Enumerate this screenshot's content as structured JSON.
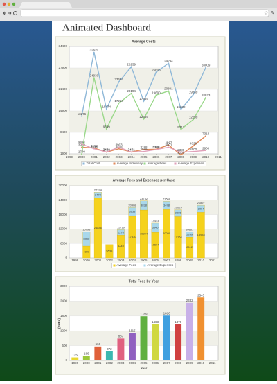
{
  "page_title": "Animated Dashboard",
  "chart_data": [
    {
      "type": "line",
      "title": "Average Costs",
      "x": [
        2000,
        2001,
        2002,
        2003,
        2004,
        2005,
        2006,
        2007,
        2008,
        2009,
        2010
      ],
      "xlim": [
        1999,
        2011
      ],
      "xticks": [
        1999,
        2000,
        2001,
        2002,
        2003,
        2004,
        2005,
        2006,
        2007,
        2008,
        2009,
        2010,
        2011
      ],
      "ylim": [
        1900,
        34400
      ],
      "yticks": [
        1900,
        8400,
        14900,
        21400,
        27900,
        34400
      ],
      "grid": true,
      "legend": "bottom",
      "series": [
        {
          "name": "Total Cost",
          "color": "#8fb8d8",
          "values": [
            13276,
            32620,
            15474,
            23694,
            28239,
            17869,
            26606,
            29294,
            15382,
            19839,
            28009
          ]
        },
        {
          "name": "Average Indemnity",
          "color": "#e08a5a",
          "values": [
            3900,
            3662,
            2420,
            3418,
            2474,
            3188,
            3300,
            4567,
            1588,
            4320,
            7313
          ]
        },
        {
          "name": "Average Fees",
          "color": "#9ad88a",
          "values": [
            1790,
            24930,
            9399,
            17253,
            20194,
            12439,
            19690,
            20891,
            9313,
            12299,
            18923
          ]
        },
        {
          "name": "Average Expenses",
          "color": "#e0a0b8",
          "values": [
            4862,
            3418,
            2474,
            3903,
            2451,
            2589,
            3188,
            3901,
            2380,
            2600,
            2900
          ]
        }
      ]
    },
    {
      "type": "bar",
      "stacked": true,
      "title": "Average Fees and Expenses per Case",
      "categories": [
        "1999",
        "2000",
        "2001",
        "2002",
        "2003",
        "2004",
        "2005",
        "2006",
        "2007",
        "2008",
        "2009",
        "2010",
        "2011"
      ],
      "ylim": [
        0,
        30000
      ],
      "yticks": [
        0,
        6000,
        12000,
        18000,
        24000,
        30000
      ],
      "grid": true,
      "legend": "bottom",
      "series": [
        {
          "name": "Average Fees",
          "color": "#f5d21c",
          "values": [
            null,
            4898,
            24846,
            5539,
            9443,
            17330,
            19894,
            10604,
            20090,
            17164,
            8612,
            18933,
            null
          ]
        },
        {
          "name": "Average Expenses",
          "color": "#a9d8ec",
          "values": [
            null,
            5900,
            2478,
            null,
            2276,
            3638,
            3838,
            3840,
            3478,
            2865,
            2249,
            2964,
            null
          ]
        }
      ],
      "totals": [
        null,
        10798,
        27324,
        null,
        11719,
        20968,
        23732,
        14444,
        23568,
        20029,
        10861,
        21897,
        null
      ]
    },
    {
      "type": "bar",
      "title": "Total Fees by Year",
      "xlabel": "Year",
      "ylabel": "(SHFA)",
      "categories": [
        "1999",
        "2000",
        "2001",
        "2002",
        "2003",
        "2004",
        "2005",
        "2006",
        "2007",
        "2008",
        "2009",
        "2010",
        "2011"
      ],
      "values": [
        125,
        186,
        566,
        372,
        887,
        1115,
        1789,
        1463,
        1816,
        1470,
        2332,
        2545,
        null
      ],
      "colors": [
        "#e8d830",
        "#9cc83c",
        "#e0603a",
        "#3cb8b0",
        "#e06080",
        "#9060c0",
        "#60b040",
        "#d0d840",
        "#40a0e0",
        "#d04040",
        "#c8b0e8",
        "#f09030",
        "#999999"
      ],
      "ylim": [
        0,
        3000
      ],
      "yticks": [
        0,
        600,
        1200,
        1800,
        2400,
        3000
      ],
      "grid": true
    }
  ]
}
